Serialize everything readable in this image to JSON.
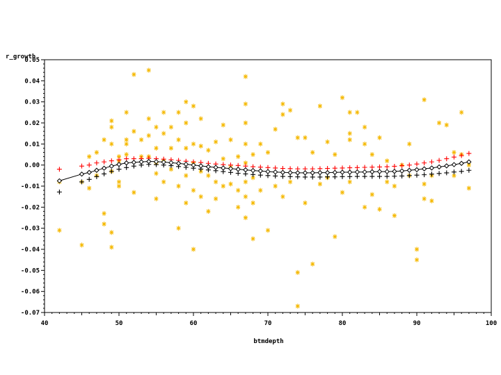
{
  "chart_data": {
    "type": "scatter",
    "title": "",
    "xlabel": "btmdepth",
    "ylabel": "r_growth",
    "xlim": [
      40,
      100
    ],
    "ylim": [
      -0.07,
      0.05
    ],
    "xticks": [
      "40",
      "50",
      "60",
      "70",
      "80",
      "90",
      "100"
    ],
    "yticks": [
      "-0.07",
      "-0.06",
      "-0.05",
      "-0.04",
      "-0.03",
      "-0.02",
      "-0.01",
      "0.00",
      "0.01",
      "0.02",
      "0.03",
      "0.04",
      "0.05"
    ],
    "grid": false,
    "legend": "none",
    "colors": {
      "points": "#f5b800",
      "upper": "#ff0000",
      "lower": "#000000",
      "fit": "#000000"
    },
    "series": [
      {
        "marker": "asterisk",
        "color": "#f5b800",
        "x": [
          42,
          42,
          45,
          45,
          46,
          46,
          47,
          47,
          48,
          48,
          48,
          49,
          49,
          49,
          49,
          49,
          49,
          50,
          50,
          50,
          50,
          51,
          51,
          51,
          51,
          52,
          52,
          52,
          53,
          53,
          54,
          54,
          54,
          54,
          55,
          55,
          55,
          55,
          55,
          56,
          56,
          56,
          56,
          57,
          57,
          57,
          58,
          58,
          58,
          58,
          59,
          59,
          59,
          59,
          59,
          60,
          60,
          60,
          60,
          60,
          61,
          61,
          61,
          61,
          62,
          62,
          62,
          63,
          63,
          63,
          64,
          64,
          64,
          65,
          65,
          65,
          66,
          66,
          66,
          67,
          67,
          67,
          67,
          67,
          67,
          67,
          67,
          68,
          68,
          68,
          68,
          69,
          69,
          70,
          70,
          71,
          71,
          72,
          72,
          72,
          73,
          73,
          74,
          74,
          74,
          75,
          75,
          76,
          76,
          77,
          77,
          78,
          78,
          79,
          79,
          80,
          80,
          81,
          81,
          81,
          81,
          82,
          83,
          83,
          83,
          84,
          84,
          85,
          85,
          86,
          86,
          87,
          87,
          88,
          89,
          89,
          90,
          90,
          91,
          91,
          91,
          92,
          92,
          93,
          94,
          95,
          95,
          96,
          96,
          97,
          97
        ],
        "y": [
          -0.031,
          -0.008,
          -0.038,
          -0.008,
          -0.011,
          0.004,
          -0.005,
          0.006,
          -0.023,
          -0.028,
          0.012,
          -0.039,
          -0.032,
          0.021,
          0.018,
          -0.003,
          0.01,
          -0.01,
          0.004,
          0.002,
          -0.008,
          0.025,
          0.012,
          0.005,
          0.01,
          0.043,
          -0.013,
          0.016,
          0.004,
          0.012,
          0.045,
          0.022,
          0.014,
          0.004,
          0.018,
          0.008,
          0.001,
          -0.004,
          -0.016,
          0.025,
          0.015,
          0.002,
          -0.008,
          0.018,
          0.008,
          -0.002,
          0.025,
          -0.01,
          -0.03,
          0.012,
          0.03,
          0.02,
          0.008,
          -0.005,
          -0.018,
          0.028,
          0.01,
          -0.04,
          0.001,
          -0.012,
          0.022,
          0.009,
          -0.003,
          -0.015,
          0.007,
          -0.005,
          -0.022,
          0.011,
          -0.008,
          -0.016,
          0.019,
          0.003,
          -0.01,
          0.012,
          -0.001,
          -0.009,
          0.004,
          -0.012,
          -0.02,
          0.042,
          0.029,
          0.02,
          0.01,
          0.001,
          -0.008,
          -0.015,
          -0.025,
          0.005,
          -0.006,
          -0.018,
          -0.035,
          0.01,
          -0.012,
          0.006,
          -0.031,
          0.017,
          -0.01,
          0.029,
          0.024,
          -0.015,
          0.026,
          -0.008,
          0.013,
          -0.051,
          -0.067,
          0.013,
          -0.018,
          -0.047,
          0.006,
          0.028,
          -0.009,
          0.011,
          -0.006,
          -0.034,
          0.005,
          -0.013,
          0.032,
          0.025,
          0.015,
          -0.008,
          0.012,
          0.025,
          0.01,
          -0.02,
          0.018,
          -0.014,
          0.005,
          -0.021,
          0.013,
          -0.008,
          0.002,
          -0.01,
          -0.024,
          0.0,
          -0.005,
          0.01,
          -0.04,
          -0.045,
          -0.016,
          -0.009,
          0.031,
          -0.005,
          -0.017,
          0.02,
          0.019,
          -0.005,
          0.006,
          0.005,
          0.025,
          -0.011,
          0.0
        ]
      },
      {
        "marker": "plus",
        "color": "#ff0000",
        "x": [
          42,
          45,
          46,
          47,
          48,
          49,
          50,
          51,
          52,
          53,
          54,
          55,
          56,
          57,
          58,
          59,
          60,
          61,
          62,
          63,
          64,
          65,
          66,
          67,
          68,
          69,
          70,
          71,
          72,
          73,
          74,
          75,
          76,
          77,
          78,
          79,
          80,
          81,
          82,
          83,
          84,
          85,
          86,
          87,
          88,
          89,
          90,
          91,
          92,
          93,
          94,
          95,
          96,
          97
        ],
        "y": [
          -0.002,
          -0.0005,
          0.0,
          0.001,
          0.0015,
          0.002,
          0.0025,
          0.003,
          0.003,
          0.003,
          0.0032,
          0.003,
          0.0028,
          0.0025,
          0.0022,
          0.0018,
          0.0015,
          0.0012,
          0.0008,
          0.0005,
          0.0002,
          0.0,
          -0.0002,
          -0.0005,
          -0.0008,
          -0.001,
          -0.0012,
          -0.0014,
          -0.0016,
          -0.0017,
          -0.0018,
          -0.0018,
          -0.0018,
          -0.0017,
          -0.0016,
          -0.0015,
          -0.0014,
          -0.0013,
          -0.0012,
          -0.0011,
          -0.001,
          -0.0009,
          -0.0008,
          -0.0006,
          -0.0003,
          0.0,
          0.0005,
          0.001,
          0.0015,
          0.0022,
          0.003,
          0.0038,
          0.0045,
          0.0055
        ]
      },
      {
        "marker": "plus",
        "color": "#000000",
        "x": [
          42,
          45,
          46,
          47,
          48,
          49,
          50,
          51,
          52,
          53,
          54,
          55,
          56,
          57,
          58,
          59,
          60,
          61,
          62,
          63,
          64,
          65,
          66,
          67,
          68,
          69,
          70,
          71,
          72,
          73,
          74,
          75,
          76,
          77,
          78,
          79,
          80,
          81,
          82,
          83,
          84,
          85,
          86,
          87,
          88,
          89,
          90,
          91,
          92,
          93,
          94,
          95,
          96,
          97
        ],
        "y": [
          -0.0128,
          -0.008,
          -0.0068,
          -0.0055,
          -0.0042,
          -0.003,
          -0.002,
          -0.0012,
          -0.0005,
          0.0,
          0.0003,
          0.0002,
          0.0,
          -0.0003,
          -0.0007,
          -0.0011,
          -0.0015,
          -0.0019,
          -0.0023,
          -0.0027,
          -0.0031,
          -0.0035,
          -0.0039,
          -0.0042,
          -0.0045,
          -0.0048,
          -0.005,
          -0.0052,
          -0.0054,
          -0.0055,
          -0.0056,
          -0.0057,
          -0.0057,
          -0.0057,
          -0.0056,
          -0.0056,
          -0.0055,
          -0.0055,
          -0.0054,
          -0.0054,
          -0.0054,
          -0.0054,
          -0.0054,
          -0.0053,
          -0.0052,
          -0.005,
          -0.0048,
          -0.0046,
          -0.0043,
          -0.004,
          -0.0037,
          -0.0033,
          -0.003,
          -0.0025
        ]
      },
      {
        "marker": "diamond-line",
        "color": "#000000",
        "x": [
          42,
          45,
          46,
          47,
          48,
          49,
          50,
          51,
          52,
          53,
          54,
          55,
          56,
          57,
          58,
          59,
          60,
          61,
          62,
          63,
          64,
          65,
          66,
          67,
          68,
          69,
          70,
          71,
          72,
          73,
          74,
          75,
          76,
          77,
          78,
          79,
          80,
          81,
          82,
          83,
          84,
          85,
          86,
          87,
          88,
          89,
          90,
          91,
          92,
          93,
          94,
          95,
          96,
          97
        ],
        "y": [
          -0.0075,
          -0.0043,
          -0.0035,
          -0.0025,
          -0.0015,
          -0.0005,
          0.0003,
          0.001,
          0.0013,
          0.0015,
          0.0017,
          0.0016,
          0.0014,
          0.0011,
          0.0008,
          0.0004,
          0.0,
          -0.0004,
          -0.0008,
          -0.0011,
          -0.0014,
          -0.0017,
          -0.002,
          -0.0023,
          -0.0026,
          -0.0028,
          -0.0031,
          -0.0033,
          -0.0035,
          -0.0036,
          -0.0037,
          -0.0037,
          -0.0037,
          -0.0036,
          -0.0036,
          -0.0035,
          -0.0034,
          -0.0034,
          -0.0033,
          -0.0033,
          -0.0032,
          -0.0031,
          -0.0031,
          -0.003,
          -0.0028,
          -0.0025,
          -0.0022,
          -0.0018,
          -0.0014,
          -0.0009,
          -0.0004,
          0.0002,
          0.0008,
          0.0015
        ]
      }
    ]
  }
}
